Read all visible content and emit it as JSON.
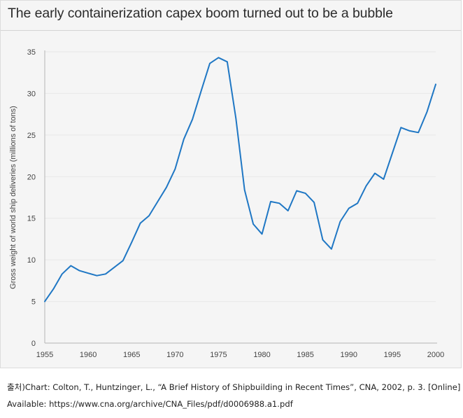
{
  "header": {
    "title": "The early containerization capex boom turned out to be a bubble"
  },
  "chart_data": {
    "type": "line",
    "title": "The early containerization capex boom turned out to be a bubble",
    "xlabel": "",
    "ylabel": "Gross weight of world ship deliveries (millions of tons)",
    "xlim": [
      1955,
      2000
    ],
    "ylim": [
      0,
      35
    ],
    "x_ticks": [
      "1955",
      "1960",
      "1965",
      "1970",
      "1975",
      "1980",
      "1985",
      "1990",
      "1995",
      "2000"
    ],
    "y_ticks": [
      "0",
      "5",
      "10",
      "15",
      "20",
      "25",
      "30",
      "35"
    ],
    "grid": true,
    "legend": "none",
    "color": "#1f77c4",
    "series": [
      {
        "x": [
          1955,
          1956,
          1957,
          1958,
          1959,
          1960,
          1961,
          1962,
          1963,
          1964,
          1965,
          1966,
          1967,
          1968,
          1969,
          1970,
          1971,
          1972,
          1973,
          1974,
          1975,
          1976,
          1977,
          1978,
          1979,
          1980,
          1981,
          1982,
          1983,
          1984,
          1985,
          1986,
          1987,
          1988,
          1989,
          1990,
          1991,
          1992,
          1993,
          1994,
          1995,
          1996,
          1997,
          1998,
          1999,
          2000
        ],
        "values": [
          5.0,
          6.5,
          8.3,
          9.3,
          8.7,
          8.4,
          8.1,
          8.3,
          9.1,
          9.9,
          12.1,
          14.4,
          15.3,
          17.0,
          18.7,
          20.9,
          24.5,
          26.9,
          30.3,
          33.6,
          34.3,
          33.8,
          27.0,
          18.4,
          14.3,
          13.1,
          17.0,
          16.8,
          15.9,
          18.3,
          18.0,
          16.9,
          12.4,
          11.3,
          14.6,
          16.2,
          16.8,
          18.9,
          20.4,
          19.7,
          22.8,
          25.9,
          25.5,
          25.3,
          27.8,
          31.1
        ]
      }
    ]
  },
  "source": {
    "line1": "출처)Chart: Colton, T., Huntzinger, L., “A Brief History of Shipbuilding in Recent Times”, CNA, 2002, p. 3. [Online]",
    "line2": "Available: https://www.cna.org/archive/CNA_Files/pdf/d0006988.a1.pdf"
  }
}
